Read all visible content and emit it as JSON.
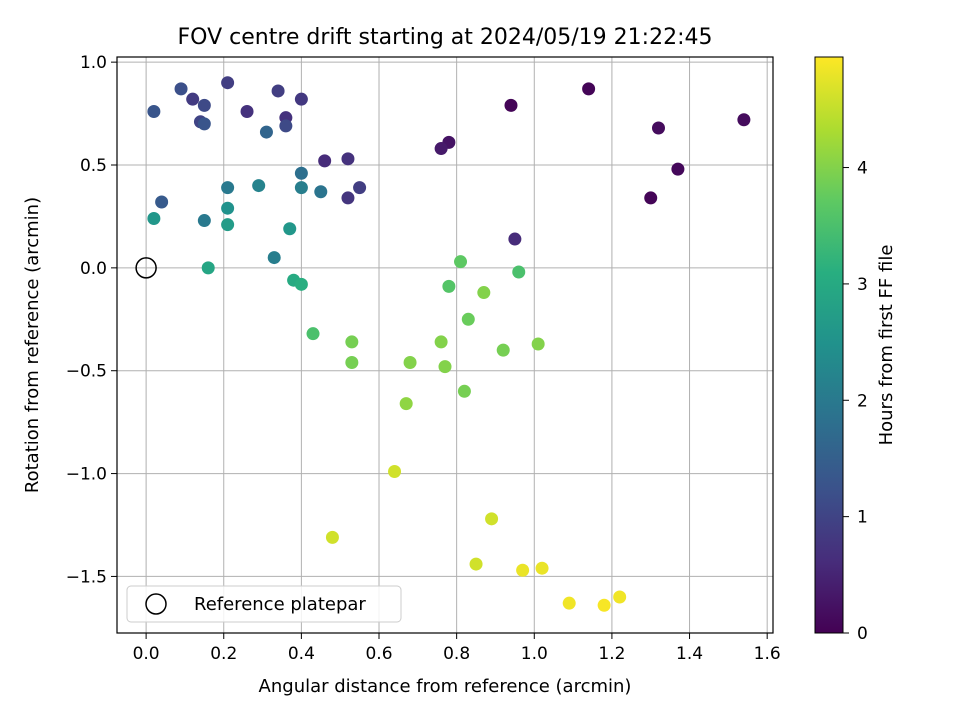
{
  "chart_data": {
    "type": "scatter",
    "title": "FOV centre drift starting at 2024/05/19 21:22:45",
    "xlabel": "Angular distance from reference (arcmin)",
    "ylabel": "Rotation from reference (arcmin)",
    "xlim": [
      -0.075,
      1.615
    ],
    "ylim": [
      -1.775,
      1.025
    ],
    "xticks": [
      0.0,
      0.2,
      0.4,
      0.6,
      0.8,
      1.0,
      1.2,
      1.4,
      1.6
    ],
    "xtick_labels": [
      "0.0",
      "0.2",
      "0.4",
      "0.6",
      "0.8",
      "1.0",
      "1.2",
      "1.4",
      "1.6"
    ],
    "yticks": [
      1.0,
      0.5,
      0.0,
      -0.5,
      -1.0,
      -1.5
    ],
    "ytick_labels": [
      "1.0",
      "0.5",
      "0.0",
      "−0.5",
      "−1.0",
      "−1.5"
    ],
    "grid": true,
    "legend": {
      "placement": "lower-left",
      "entries": [
        "Reference platepar"
      ]
    },
    "reference_point": {
      "x": 0.0,
      "y": 0.0
    },
    "colorbar": {
      "label": "Hours from first FF file",
      "range": [
        0,
        4.95
      ],
      "ticks": [
        0,
        1,
        2,
        3,
        4
      ],
      "tick_labels": [
        "0",
        "1",
        "2",
        "3",
        "4"
      ],
      "colormap": "viridis"
    },
    "points": [
      {
        "x": 0.94,
        "y": 0.79,
        "c": 0.05
      },
      {
        "x": 1.14,
        "y": 0.87,
        "c": 0.05
      },
      {
        "x": 1.54,
        "y": 0.72,
        "c": 0.15
      },
      {
        "x": 1.32,
        "y": 0.68,
        "c": 0.15
      },
      {
        "x": 1.37,
        "y": 0.48,
        "c": 0.1
      },
      {
        "x": 1.3,
        "y": 0.34,
        "c": 0.05
      },
      {
        "x": 0.78,
        "y": 0.61,
        "c": 0.25
      },
      {
        "x": 0.76,
        "y": 0.58,
        "c": 0.35
      },
      {
        "x": 0.95,
        "y": 0.14,
        "c": 0.6
      },
      {
        "x": 0.46,
        "y": 0.52,
        "c": 0.6
      },
      {
        "x": 0.52,
        "y": 0.53,
        "c": 0.7
      },
      {
        "x": 0.52,
        "y": 0.34,
        "c": 0.75
      },
      {
        "x": 0.55,
        "y": 0.39,
        "c": 0.9
      },
      {
        "x": 0.36,
        "y": 0.73,
        "c": 0.7
      },
      {
        "x": 0.4,
        "y": 0.82,
        "c": 0.8
      },
      {
        "x": 0.34,
        "y": 0.86,
        "c": 0.9
      },
      {
        "x": 0.26,
        "y": 0.76,
        "c": 0.7
      },
      {
        "x": 0.21,
        "y": 0.9,
        "c": 0.9
      },
      {
        "x": 0.12,
        "y": 0.82,
        "c": 0.85
      },
      {
        "x": 0.09,
        "y": 0.87,
        "c": 1.2
      },
      {
        "x": 0.14,
        "y": 0.71,
        "c": 1.0
      },
      {
        "x": 0.15,
        "y": 0.79,
        "c": 1.1
      },
      {
        "x": 0.15,
        "y": 0.7,
        "c": 1.3
      },
      {
        "x": 0.02,
        "y": 0.76,
        "c": 1.3
      },
      {
        "x": 0.36,
        "y": 0.69,
        "c": 1.1
      },
      {
        "x": 0.31,
        "y": 0.66,
        "c": 1.6
      },
      {
        "x": 0.04,
        "y": 0.32,
        "c": 1.4
      },
      {
        "x": 0.4,
        "y": 0.46,
        "c": 1.8
      },
      {
        "x": 0.4,
        "y": 0.39,
        "c": 2.1
      },
      {
        "x": 0.45,
        "y": 0.37,
        "c": 1.9
      },
      {
        "x": 0.29,
        "y": 0.4,
        "c": 2.2
      },
      {
        "x": 0.21,
        "y": 0.39,
        "c": 2.0
      },
      {
        "x": 0.15,
        "y": 0.23,
        "c": 2.0
      },
      {
        "x": 0.21,
        "y": 0.29,
        "c": 2.5
      },
      {
        "x": 0.21,
        "y": 0.21,
        "c": 2.7
      },
      {
        "x": 0.02,
        "y": 0.24,
        "c": 2.6
      },
      {
        "x": 0.37,
        "y": 0.19,
        "c": 2.6
      },
      {
        "x": 0.33,
        "y": 0.05,
        "c": 2.1
      },
      {
        "x": 0.16,
        "y": 0.0,
        "c": 2.9
      },
      {
        "x": 0.38,
        "y": -0.06,
        "c": 3.0
      },
      {
        "x": 0.4,
        "y": -0.08,
        "c": 3.1
      },
      {
        "x": 0.43,
        "y": -0.32,
        "c": 3.5
      },
      {
        "x": 0.53,
        "y": -0.36,
        "c": 3.9
      },
      {
        "x": 0.53,
        "y": -0.46,
        "c": 3.9
      },
      {
        "x": 0.68,
        "y": -0.46,
        "c": 4.0
      },
      {
        "x": 0.67,
        "y": -0.66,
        "c": 4.1
      },
      {
        "x": 0.76,
        "y": -0.36,
        "c": 4.0
      },
      {
        "x": 0.77,
        "y": -0.48,
        "c": 4.0
      },
      {
        "x": 0.82,
        "y": -0.6,
        "c": 3.9
      },
      {
        "x": 0.83,
        "y": -0.25,
        "c": 3.8
      },
      {
        "x": 0.78,
        "y": -0.09,
        "c": 3.6
      },
      {
        "x": 0.81,
        "y": 0.03,
        "c": 3.7
      },
      {
        "x": 0.87,
        "y": -0.12,
        "c": 4.0
      },
      {
        "x": 0.92,
        "y": -0.4,
        "c": 3.9
      },
      {
        "x": 0.96,
        "y": -0.02,
        "c": 3.5
      },
      {
        "x": 1.01,
        "y": -0.37,
        "c": 4.0
      },
      {
        "x": 0.64,
        "y": -0.99,
        "c": 4.6
      },
      {
        "x": 0.48,
        "y": -1.31,
        "c": 4.6
      },
      {
        "x": 0.89,
        "y": -1.22,
        "c": 4.6
      },
      {
        "x": 0.85,
        "y": -1.44,
        "c": 4.6
      },
      {
        "x": 0.97,
        "y": -1.47,
        "c": 4.8
      },
      {
        "x": 1.02,
        "y": -1.46,
        "c": 4.8
      },
      {
        "x": 1.09,
        "y": -1.63,
        "c": 4.85
      },
      {
        "x": 1.18,
        "y": -1.64,
        "c": 4.9
      },
      {
        "x": 1.22,
        "y": -1.6,
        "c": 4.85
      }
    ]
  }
}
